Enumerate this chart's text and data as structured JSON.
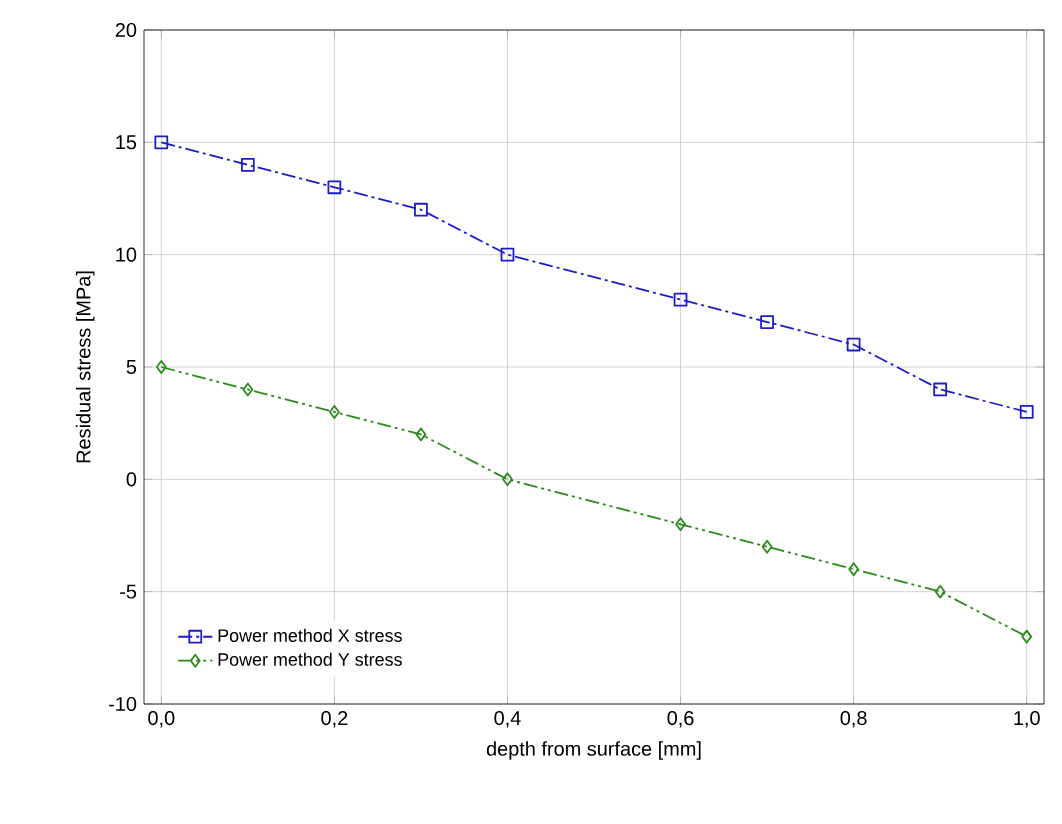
{
  "chart_data": {
    "type": "line",
    "xlabel": "depth from surface [mm]",
    "ylabel": "Residual stress [MPa]",
    "xlim": [
      -0.02,
      1.02
    ],
    "ylim": [
      -10,
      20
    ],
    "xticks": [
      {
        "value": 0,
        "label": "0,0"
      },
      {
        "value": 0.2,
        "label": "0,2"
      },
      {
        "value": 0.4,
        "label": "0,4"
      },
      {
        "value": 0.6,
        "label": "0,6"
      },
      {
        "value": 0.8,
        "label": "0,8"
      },
      {
        "value": 1,
        "label": "1,0"
      }
    ],
    "yticks": [
      -10,
      -5,
      0,
      5,
      10,
      15,
      20
    ],
    "grid": true,
    "legend": "bottom left",
    "line_style": "dashed",
    "x": [
      0,
      0.1,
      0.2,
      0.3,
      0.4,
      0.6,
      0.7,
      0.8,
      0.9,
      1.0
    ],
    "series": [
      {
        "name": "Power method X stress",
        "color": "#1c1ccc",
        "marker": "square",
        "values": [
          15,
          14,
          13,
          12,
          10,
          8,
          7,
          6,
          4,
          3
        ]
      },
      {
        "name": "Power method Y stress",
        "color": "#2a8a1a",
        "marker": "diamond",
        "values": [
          5,
          4,
          3,
          2,
          0,
          -2,
          -3,
          -4,
          -5,
          -7
        ]
      }
    ]
  }
}
